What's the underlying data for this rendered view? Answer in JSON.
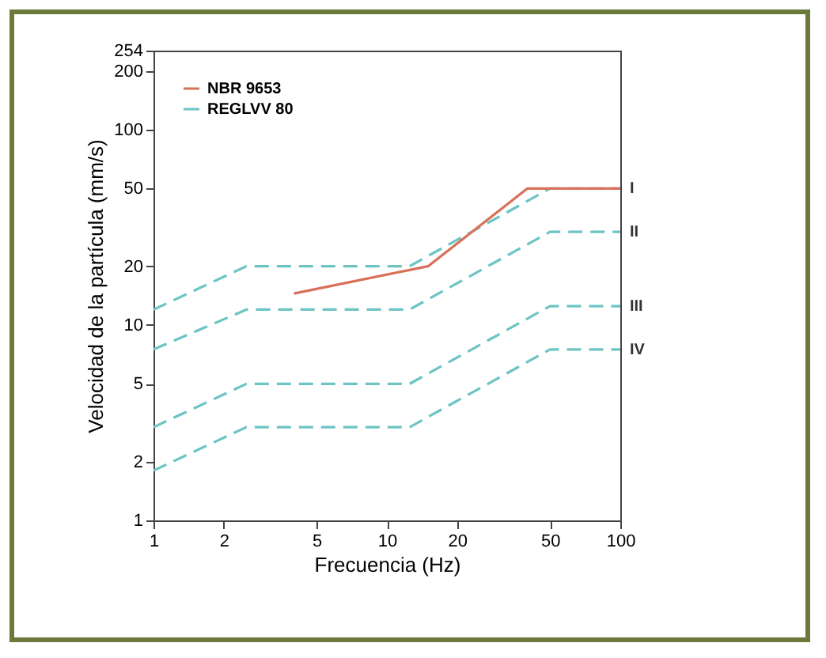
{
  "chart_data": {
    "type": "line",
    "xlabel": "Frecuencia (Hz)",
    "ylabel": "Velocidad de la partícula (mm/s)",
    "log": "xy",
    "xlim": [
      1,
      100
    ],
    "ylim": [
      1,
      254
    ],
    "xticks": [
      1,
      2,
      5,
      10,
      20,
      50,
      100
    ],
    "yticks": [
      1,
      2,
      5,
      10,
      20,
      50,
      100,
      200,
      254
    ],
    "legend": "top left",
    "grid": false,
    "series": [
      {
        "name": "NBR 9653",
        "color": "#d9705a",
        "line_style": "solid",
        "x": [
          4,
          15,
          40,
          100
        ],
        "values": [
          14.5,
          20,
          50,
          50
        ]
      },
      {
        "name": "REGLVV 80",
        "color": "#6cc4c4",
        "line_style": "dashed",
        "x": [
          1,
          2.5,
          12.5,
          50,
          100
        ],
        "values": [
          12,
          20,
          20,
          50,
          50
        ]
      },
      {
        "color": "#6cc4c4",
        "line_style": "dashed",
        "x": [
          1,
          2.5,
          12.5,
          50,
          100
        ],
        "values": [
          7.5,
          12,
          12,
          30,
          30
        ]
      },
      {
        "color": "#6cc4c4",
        "line_style": "dashed",
        "x": [
          1,
          2.5,
          12.5,
          50,
          100
        ],
        "values": [
          3,
          5,
          5,
          12.5,
          12.5
        ]
      },
      {
        "color": "#6cc4c4",
        "line_style": "dashed",
        "x": [
          1,
          2.5,
          12.5,
          50,
          100
        ],
        "values": [
          1.8,
          3,
          3,
          7.5,
          7.5
        ]
      }
    ],
    "annotations": [
      "I",
      "II",
      "III",
      "IV"
    ]
  }
}
